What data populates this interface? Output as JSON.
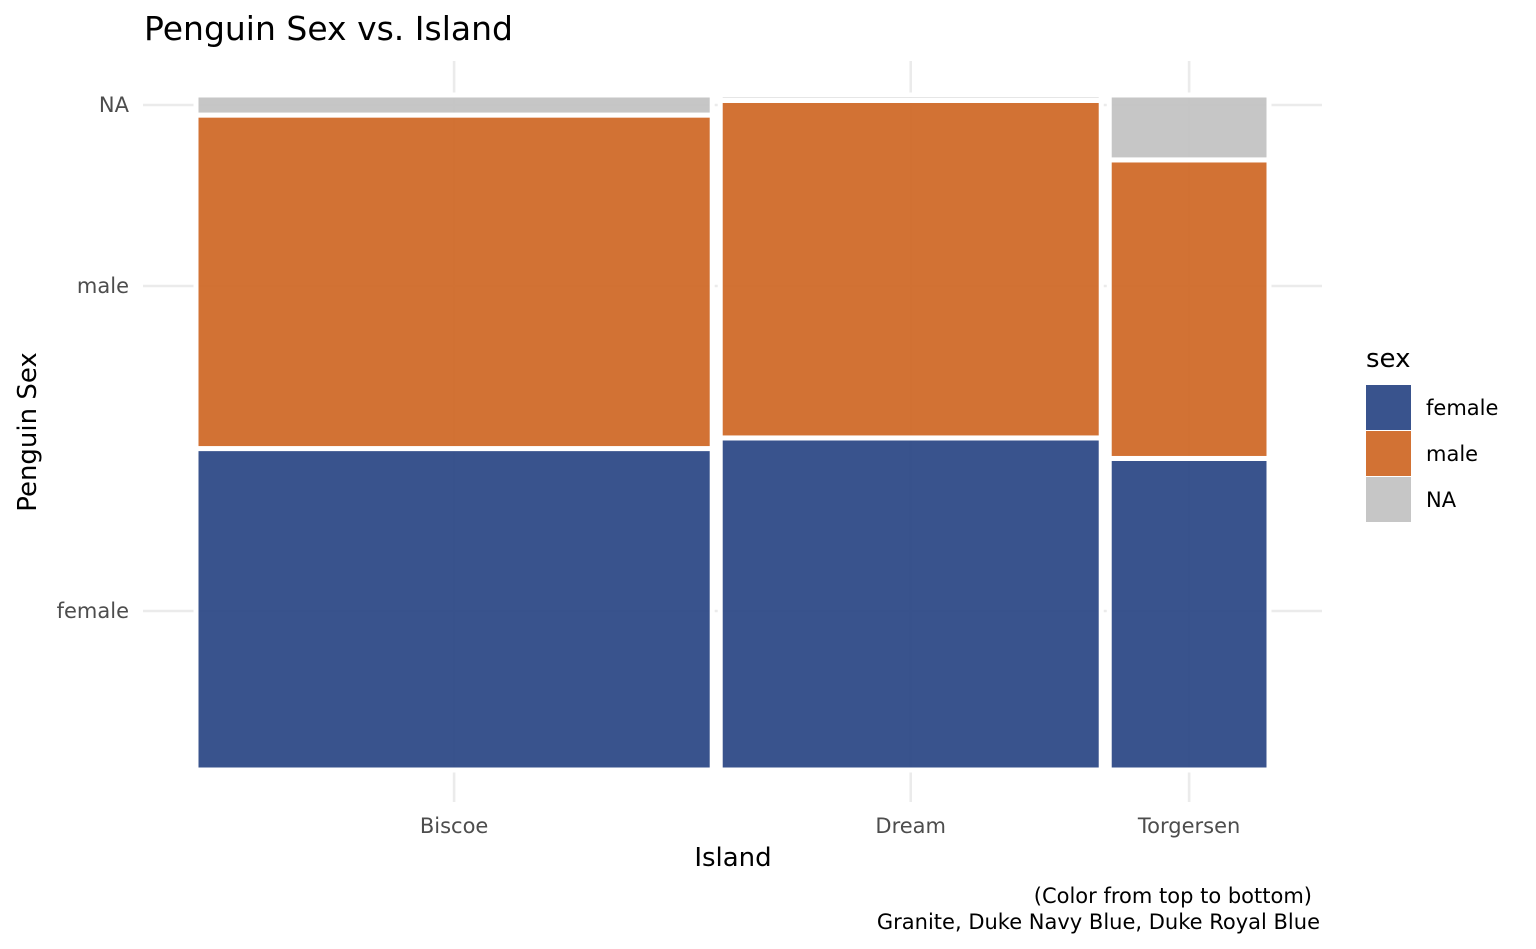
{
  "chart_data": {
    "type": "mosaic",
    "title": "Penguin Sex vs. Island",
    "xlabel": "Island",
    "ylabel": "Penguin Sex",
    "legend": {
      "title": "sex",
      "position": "right",
      "entries": [
        "female",
        "male",
        "NA"
      ]
    },
    "categories": [
      "Biscoe",
      "Dream",
      "Torgersen"
    ],
    "y_tick_labels": [
      "female",
      "male",
      "NA"
    ],
    "counts": {
      "Biscoe": {
        "female": 80,
        "male": 83,
        "NA": 5
      },
      "Dream": {
        "female": 61,
        "male": 62,
        "NA": 1
      },
      "Torgersen": {
        "female": 24,
        "male": 23,
        "NA": 5
      }
    },
    "colors": {
      "female": "#2e4a87",
      "male": "#d06a29",
      "NA": "#c3c3c3"
    },
    "grid": true,
    "caption_lines": [
      "(Color from top to bottom)",
      "Granite, Duke Navy Blue, Duke Royal Blue"
    ]
  }
}
